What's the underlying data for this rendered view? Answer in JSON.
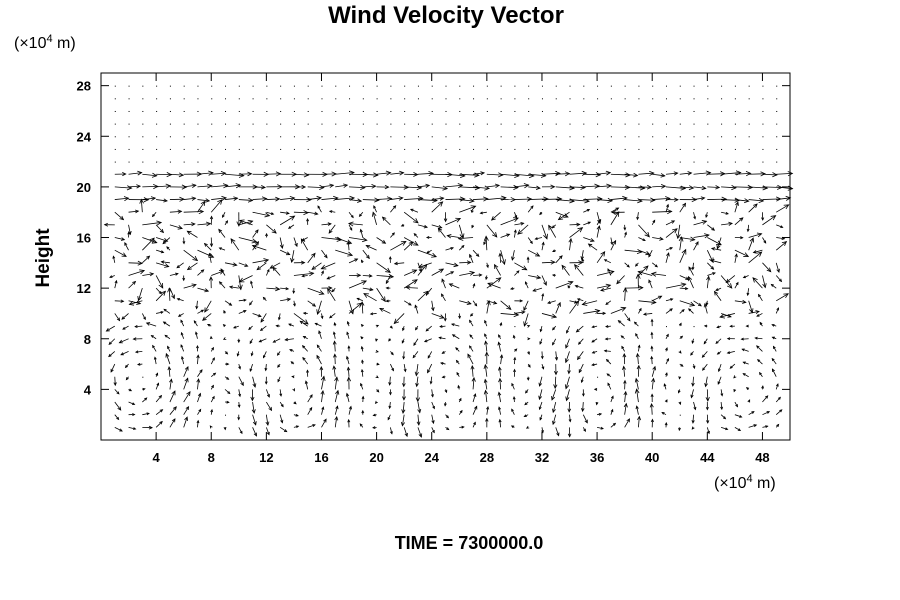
{
  "chart_data": {
    "type": "vector-field",
    "title": "Wind Velocity Vector",
    "ylabel": "Height",
    "y_unit": {
      "prefix": "(×10",
      "exponent": "4",
      "suffix": " m)"
    },
    "x_unit": {
      "prefix": "(×10",
      "exponent": "4",
      "suffix": " m)"
    },
    "x_ticks": [
      4,
      8,
      12,
      16,
      20,
      24,
      28,
      32,
      36,
      40,
      44,
      48
    ],
    "y_ticks": [
      4,
      8,
      12,
      16,
      20,
      24,
      28
    ],
    "xlim": [
      0,
      50
    ],
    "ylim": [
      0,
      29
    ],
    "grid": {
      "x_spacing": 1,
      "y_spacing": 1
    },
    "time_label": "TIME = 7300000.0",
    "vector_color": "#000000",
    "field_description": "Strong eastward jets near height 19-20, turbulent mixed vectors between 10 and 18, rotating cells near the ground below 9, near-calm vectors above 21"
  }
}
